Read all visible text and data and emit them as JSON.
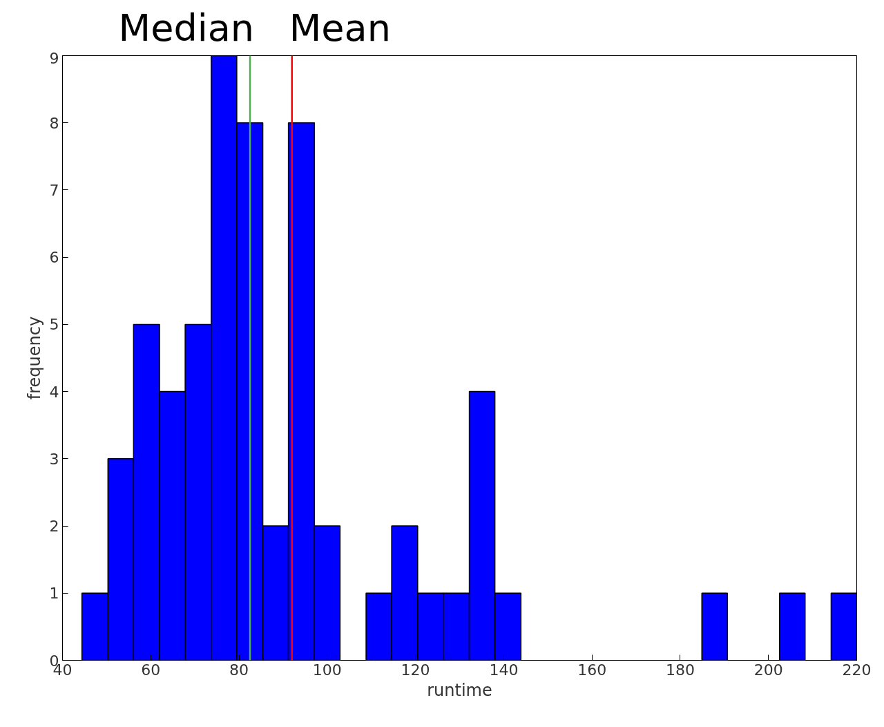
{
  "chart_data": {
    "type": "histogram",
    "xlabel": "runtime",
    "ylabel": "frequency",
    "bins": [
      44.4,
      50.3,
      56.1,
      62.0,
      67.8,
      73.7,
      79.5,
      85.4,
      91.2,
      97.1,
      102.9,
      108.8,
      114.6,
      120.5,
      126.3,
      132.2,
      138.0,
      143.9,
      184.9,
      190.7,
      202.5,
      208.3,
      214.2,
      220.0
    ],
    "values": [
      1,
      3,
      5,
      4,
      5,
      9,
      8,
      2,
      8,
      2,
      0,
      1,
      2,
      1,
      1,
      4,
      1,
      0,
      1,
      0,
      1,
      0,
      1
    ],
    "color": "#0000ff",
    "xlim": [
      40,
      220
    ],
    "ylim": [
      0,
      9
    ],
    "xticks": [
      40,
      60,
      80,
      100,
      120,
      140,
      160,
      180,
      200,
      220
    ],
    "yticks": [
      0,
      1,
      2,
      3,
      4,
      5,
      6,
      7,
      8,
      9
    ],
    "grid": false,
    "ref_lines": [
      {
        "axis": "x",
        "value": 82.5,
        "label": "Median",
        "color": "#4caf50"
      },
      {
        "axis": "x",
        "value": 92.0,
        "label": "Mean",
        "color": "#ff0000"
      }
    ]
  }
}
